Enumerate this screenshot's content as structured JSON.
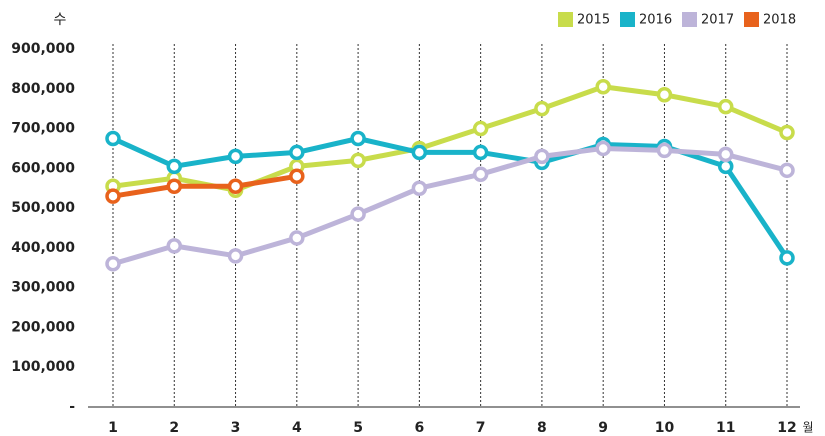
{
  "chart_data": {
    "type": "line",
    "y_axis_label": "수",
    "x_axis_label": "월",
    "categories": [
      "1",
      "2",
      "3",
      "4",
      "5",
      "6",
      "7",
      "8",
      "9",
      "10",
      "11",
      "12"
    ],
    "series": [
      {
        "name": "2015",
        "color": "#c8dc4b",
        "values": [
          555000,
          575000,
          545000,
          605000,
          620000,
          650000,
          700000,
          750000,
          805000,
          785000,
          755000,
          690000
        ]
      },
      {
        "name": "2016",
        "color": "#19b3c9",
        "values": [
          675000,
          605000,
          630000,
          640000,
          675000,
          640000,
          640000,
          615000,
          660000,
          655000,
          605000,
          375000
        ]
      },
      {
        "name": "2017",
        "color": "#bdb4d9",
        "values": [
          360000,
          405000,
          380000,
          425000,
          485000,
          550000,
          585000,
          630000,
          650000,
          645000,
          635000,
          595000
        ]
      },
      {
        "name": "2018",
        "color": "#e8621c",
        "values": [
          530000,
          555000,
          555000,
          580000,
          null,
          null,
          null,
          null,
          null,
          null,
          null,
          null
        ]
      }
    ],
    "ylim": [
      0,
      900000
    ],
    "yticks": [
      {
        "value": 0,
        "label": "-"
      },
      {
        "value": 100000,
        "label": "100,000"
      },
      {
        "value": 200000,
        "label": "200,000"
      },
      {
        "value": 300000,
        "label": "300,000"
      },
      {
        "value": 400000,
        "label": "400,000"
      },
      {
        "value": 500000,
        "label": "500,000"
      },
      {
        "value": 600000,
        "label": "600,000"
      },
      {
        "value": 700000,
        "label": "700,000"
      },
      {
        "value": 800000,
        "label": "800,000"
      },
      {
        "value": 900000,
        "label": "900,000"
      }
    ],
    "grid": true,
    "legend": "top-right"
  }
}
